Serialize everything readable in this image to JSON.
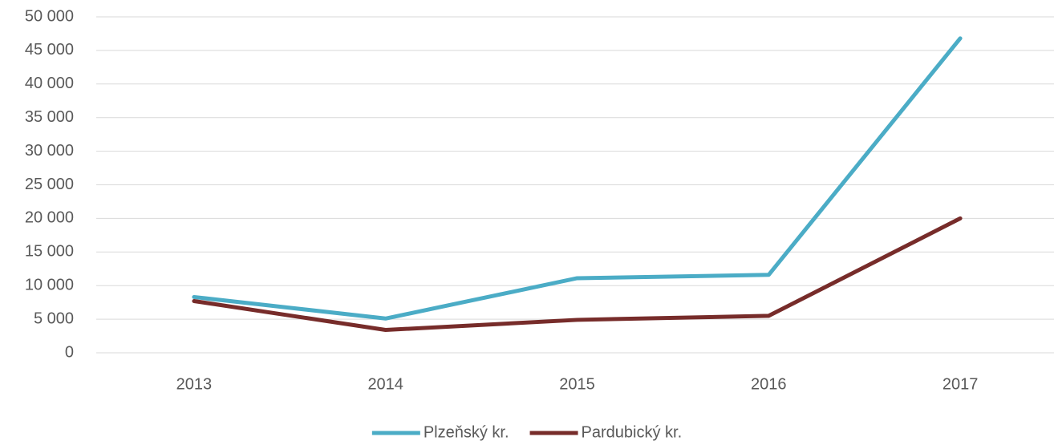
{
  "chart_data": {
    "type": "line",
    "categories": [
      "2013",
      "2014",
      "2015",
      "2016",
      "2017"
    ],
    "series": [
      {
        "name": "Plzeňský kr.",
        "color": "#4bacc6",
        "values": [
          8300,
          5100,
          11100,
          11600,
          46800
        ]
      },
      {
        "name": "Pardubický kr.",
        "color": "#772c2a",
        "values": [
          7700,
          3400,
          4900,
          5500,
          20000
        ]
      }
    ],
    "ylim": [
      0,
      50000
    ],
    "yticks": [
      0,
      {
        "value": 5000,
        "label": "5 000"
      },
      {
        "value": 10000,
        "label": "10 000"
      },
      {
        "value": 15000,
        "label": "15 000"
      },
      {
        "value": 20000,
        "label": "20 000"
      },
      {
        "value": 25000,
        "label": "25 000"
      },
      {
        "value": 30000,
        "label": "30 000"
      },
      {
        "value": 35000,
        "label": "35 000"
      },
      {
        "value": 40000,
        "label": "40 000"
      },
      {
        "value": 45000,
        "label": "45 000"
      },
      {
        "value": 50000,
        "label": "50 000"
      }
    ],
    "grid": true,
    "legend": "bottom"
  }
}
